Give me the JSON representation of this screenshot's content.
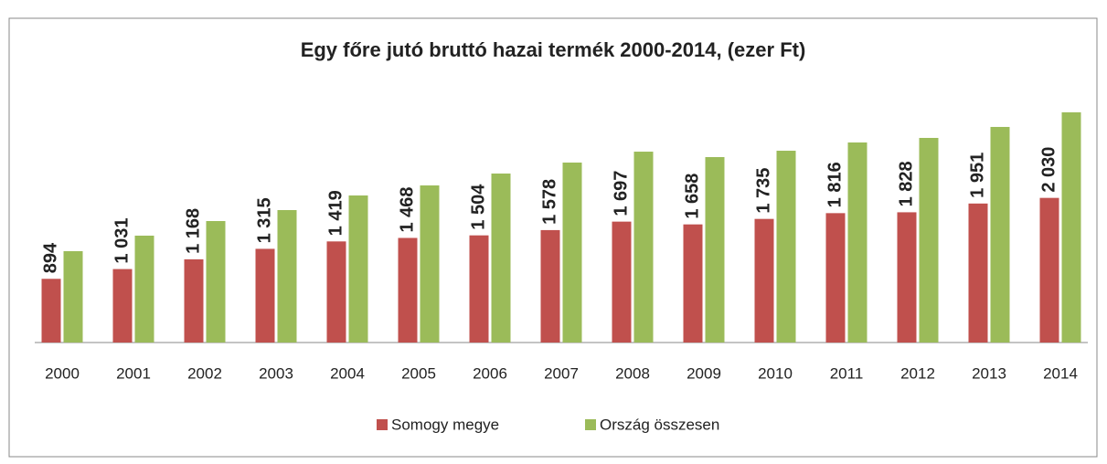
{
  "chart_data": {
    "type": "bar",
    "title": "Egy főre jutó bruttó hazai termék 2000-2014, (ezer Ft)",
    "categories": [
      "2000",
      "2001",
      "2002",
      "2003",
      "2004",
      "2005",
      "2006",
      "2007",
      "2008",
      "2009",
      "2010",
      "2011",
      "2012",
      "2013",
      "2014"
    ],
    "series": [
      {
        "name": "Somogy megye",
        "color": "#c0504d",
        "values": [
          894,
          1031,
          1168,
          1315,
          1419,
          1468,
          1504,
          1578,
          1697,
          1658,
          1735,
          1816,
          1828,
          1951,
          2030
        ],
        "value_labels": [
          "894",
          "1 031",
          "1 168",
          "1 315",
          "1 419",
          "1 468",
          "1 504",
          "1 578",
          "1 697",
          "1 658",
          "1 735",
          "1 816",
          "1 828",
          "1 951",
          "2 030"
        ]
      },
      {
        "name": "Ország összesen",
        "color": "#9bbb59",
        "values": [
          1282,
          1500,
          1705,
          1859,
          2064,
          2205,
          2372,
          2526,
          2679,
          2603,
          2692,
          2808,
          2872,
          3026,
          3231
        ]
      }
    ],
    "ylim": [
      0,
      3500
    ],
    "grid": false,
    "legend": "bottom"
  }
}
